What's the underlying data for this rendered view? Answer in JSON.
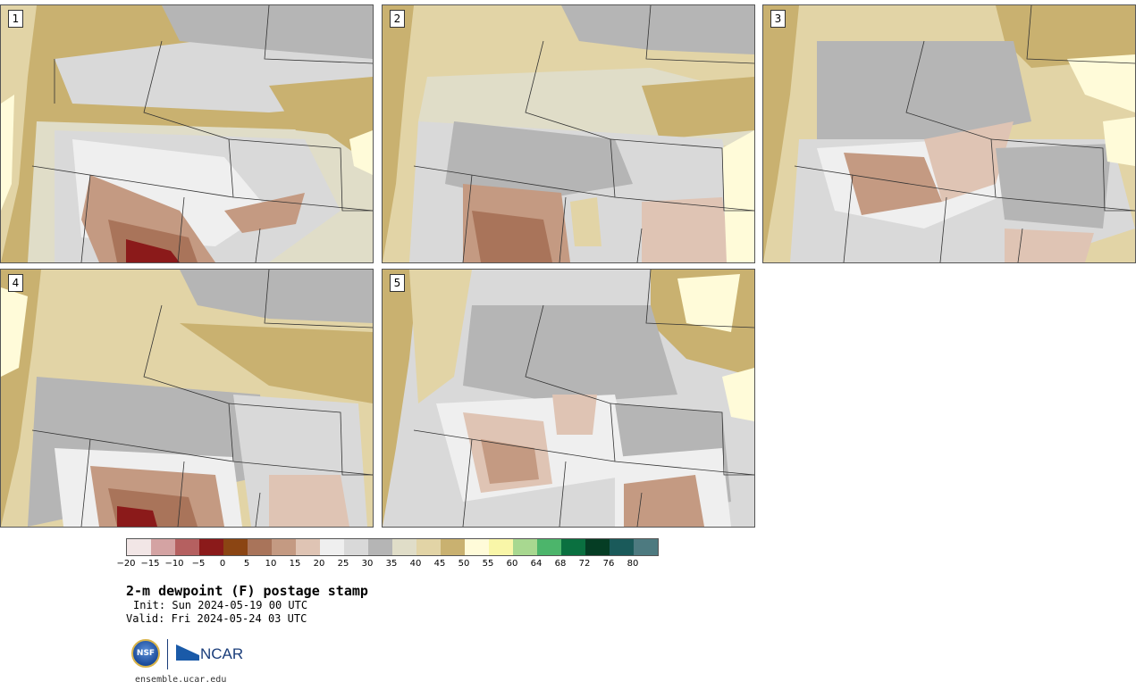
{
  "panels": [
    {
      "label": "1"
    },
    {
      "label": "2"
    },
    {
      "label": "3"
    },
    {
      "label": "4"
    },
    {
      "label": "5"
    }
  ],
  "colorbar": {
    "colors": [
      "#f2e6e6",
      "#d4a3a3",
      "#b56060",
      "#8b1a1a",
      "#8b4513",
      "#a9745a",
      "#c49a82",
      "#dfc4b4",
      "#efefef",
      "#d9d9d9",
      "#b5b5b5",
      "#e0ddc8",
      "#e2d4a6",
      "#c9b170",
      "#fffbd9",
      "#f9f6a8",
      "#a8d890",
      "#4cb56b",
      "#0a7040",
      "#053d24",
      "#1a5a5a",
      "#4d7a80"
    ],
    "tick_labels": [
      "−20",
      "−15",
      "−10",
      "−5",
      "0",
      "5",
      "10",
      "15",
      "20",
      "25",
      "30",
      "35",
      "40",
      "45",
      "50",
      "55",
      "60",
      "64",
      "68",
      "72",
      "76",
      "80"
    ]
  },
  "title": "2-m dewpoint (F) postage stamp",
  "init": "Init: Sun 2024-05-19 00 UTC",
  "valid": "Valid: Fri 2024-05-24 03 UTC",
  "logos": {
    "nsf": "NSF",
    "ncar": "NCAR"
  },
  "url": "ensemble.ucar.edu"
}
